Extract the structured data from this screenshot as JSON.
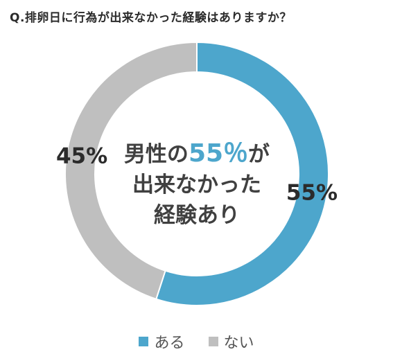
{
  "question": "Q.排卵日に行為が出来なかった経験はありますか？",
  "center": {
    "prefix": "男性の",
    "highlight": "55％",
    "suffix": "が",
    "line2": "出来なかった",
    "line3": "経験あり"
  },
  "colors": {
    "aru": "#4da6cc",
    "nai": "#bfbfbf",
    "accent": "#4da6cc"
  },
  "chart_data": {
    "type": "pie",
    "variant": "donut",
    "title": "Q.排卵日に行為が出来なかった経験はありますか？",
    "slices": [
      {
        "label": "ある",
        "value": 55,
        "display": "55%",
        "color": "#4da6cc"
      },
      {
        "label": "ない",
        "value": 45,
        "display": "45%",
        "color": "#bfbfbf"
      }
    ],
    "legend": [
      "ある",
      "ない"
    ],
    "legend_placement": "bottom"
  }
}
